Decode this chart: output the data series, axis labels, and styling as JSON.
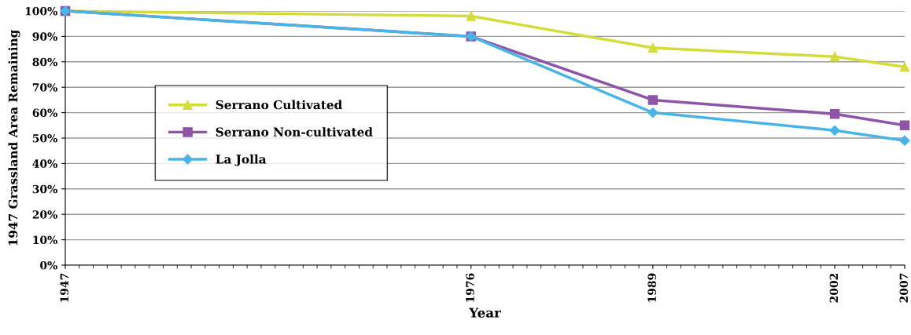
{
  "chart_data": {
    "type": "line",
    "xlabel": "Year",
    "ylabel": "1947 Grassland Area Remaining",
    "x": [
      1947,
      1976,
      1989,
      2002,
      2007
    ],
    "series": [
      {
        "name": "Serrano Cultivated",
        "color": "#d4dc3c",
        "marker": "triangle",
        "values": [
          100,
          98,
          85.5,
          82,
          78
        ]
      },
      {
        "name": "Serrano Non-cultivated",
        "color": "#8e54a6",
        "marker": "square",
        "values": [
          100,
          90,
          65,
          59.5,
          55
        ]
      },
      {
        "name": "La Jolla",
        "color": "#4ab4e6",
        "marker": "diamond",
        "values": [
          100,
          90,
          60,
          53,
          49
        ]
      }
    ],
    "xlim": [
      1947,
      2007
    ],
    "xticks": [
      1947,
      1976,
      1989,
      2002,
      2007
    ],
    "ylim": [
      0,
      100
    ],
    "yticks": [
      {
        "value": 0,
        "label": "0%"
      },
      {
        "value": 10,
        "label": "10%"
      },
      {
        "value": 20,
        "label": "20%"
      },
      {
        "value": 30,
        "label": "30%"
      },
      {
        "value": 40,
        "label": "40%"
      },
      {
        "value": 50,
        "label": "50%"
      },
      {
        "value": 60,
        "label": "60%"
      },
      {
        "value": 70,
        "label": "70%"
      },
      {
        "value": 80,
        "label": "80%"
      },
      {
        "value": 90,
        "label": "90%"
      },
      {
        "value": 100,
        "label": "100%"
      }
    ],
    "grid": "y",
    "legend": "left"
  }
}
